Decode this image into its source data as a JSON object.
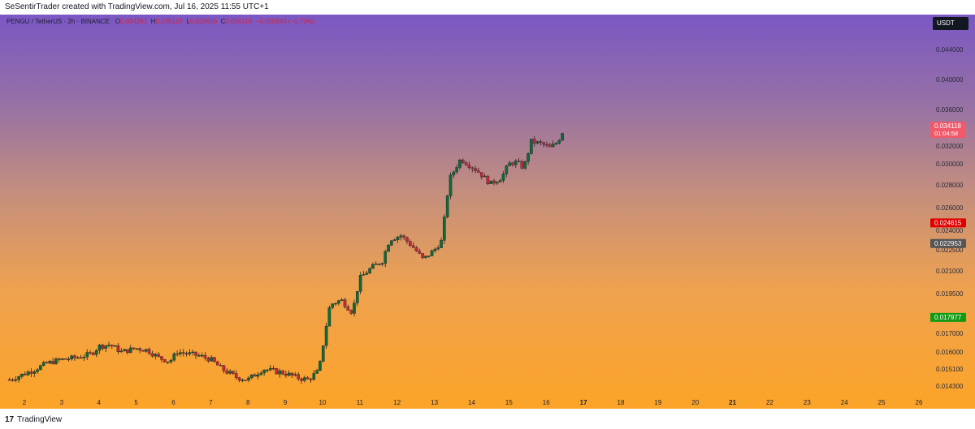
{
  "header": {
    "text": "SeSentirTrader created with TradingView.com, Jul 16, 2025 11:55 UTC+1"
  },
  "legend": {
    "symbol": "PENGU / TetherUS · 2h · BINANCE",
    "o_label": "O",
    "o": "0.034261",
    "h_label": "H",
    "h": "0.035120",
    "l_label": "L",
    "l": "0.033616",
    "c_label": "C",
    "c": "0.034118",
    "change": "−0.000240 (−0.70%)"
  },
  "currency_button": "USDT",
  "footer": {
    "logo": "17",
    "text": "TradingView"
  },
  "colors": {
    "up": "#0b6b3a",
    "down": "#d3233a",
    "wick": "#222222"
  },
  "chart_data": {
    "type": "candlestick",
    "title": "PENGU / TetherUS · 2h · BINANCE",
    "y_axis": {
      "position": "right",
      "ticks": [
        "0.044000",
        "0.040000",
        "0.036000",
        "0.032000",
        "0.030000",
        "0.028000",
        "0.026000",
        "0.024000",
        "0.022500",
        "0.021000",
        "0.019500",
        "0.017000",
        "0.016000",
        "0.015100",
        "0.014300"
      ]
    },
    "x_axis": {
      "ticks": [
        "2",
        "3",
        "4",
        "5",
        "6",
        "7",
        "8",
        "9",
        "10",
        "11",
        "12",
        "13",
        "14",
        "15",
        "16",
        "17",
        "18",
        "19",
        "20",
        "21",
        "22",
        "23",
        "24",
        "25",
        "26"
      ]
    },
    "price_tags": [
      {
        "value": "0.034118",
        "sub": "01:04:58",
        "color": "#f05a6a"
      },
      {
        "value": "0.024615",
        "color": "#e00000"
      },
      {
        "value": "0.022953",
        "color": "#555555"
      },
      {
        "value": "0.017977",
        "color": "#129a12"
      }
    ],
    "close_path": [
      [
        1.6,
        0.0146
      ],
      [
        1.9,
        0.0148
      ],
      [
        2.3,
        0.0151
      ],
      [
        2.6,
        0.0154
      ],
      [
        3.0,
        0.0156
      ],
      [
        3.4,
        0.0157
      ],
      [
        3.8,
        0.0159
      ],
      [
        4.0,
        0.0163
      ],
      [
        4.3,
        0.0164
      ],
      [
        4.6,
        0.016
      ],
      [
        5.0,
        0.0162
      ],
      [
        5.3,
        0.0161
      ],
      [
        5.6,
        0.0157
      ],
      [
        5.9,
        0.0155
      ],
      [
        6.1,
        0.016
      ],
      [
        6.4,
        0.0159
      ],
      [
        6.7,
        0.0158
      ],
      [
        7.0,
        0.0156
      ],
      [
        7.3,
        0.0151
      ],
      [
        7.7,
        0.0147
      ],
      [
        8.0,
        0.0146
      ],
      [
        8.4,
        0.0151
      ],
      [
        8.7,
        0.015
      ],
      [
        9.0,
        0.0149
      ],
      [
        9.3,
        0.0147
      ],
      [
        9.6,
        0.0146
      ],
      [
        9.9,
        0.015
      ],
      [
        10.0,
        0.0162
      ],
      [
        10.2,
        0.0188
      ],
      [
        10.5,
        0.0191
      ],
      [
        10.8,
        0.0183
      ],
      [
        11.0,
        0.0205
      ],
      [
        11.3,
        0.0212
      ],
      [
        11.6,
        0.0217
      ],
      [
        11.8,
        0.0233
      ],
      [
        12.1,
        0.0236
      ],
      [
        12.4,
        0.0228
      ],
      [
        12.7,
        0.0218
      ],
      [
        13.0,
        0.0225
      ],
      [
        13.2,
        0.0232
      ],
      [
        13.4,
        0.0285
      ],
      [
        13.7,
        0.0305
      ],
      [
        13.9,
        0.03
      ],
      [
        14.2,
        0.0292
      ],
      [
        14.5,
        0.0281
      ],
      [
        14.8,
        0.0287
      ],
      [
        15.0,
        0.03
      ],
      [
        15.2,
        0.0302
      ],
      [
        15.4,
        0.0296
      ],
      [
        15.6,
        0.0325
      ],
      [
        15.9,
        0.0322
      ],
      [
        16.1,
        0.0318
      ],
      [
        16.3,
        0.0324
      ],
      [
        16.5,
        0.0341
      ]
    ]
  }
}
